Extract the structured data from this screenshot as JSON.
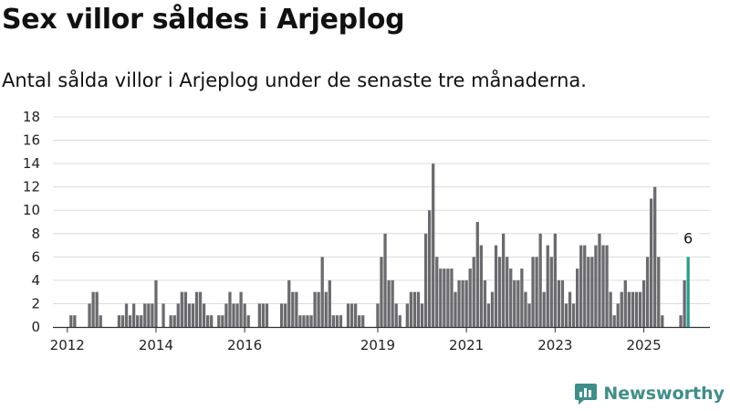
{
  "colors": {
    "bar": "#6b6b6f",
    "highlight": "#2a9d8f",
    "grid": "#dcdcdc",
    "brand": "#3e8e8a"
  },
  "logo": {
    "text": "Newsworthy",
    "icon": "newsworthy-chart-icon"
  },
  "chart_data": {
    "type": "bar",
    "title": "Sex villor såldes i Arjeplog",
    "subtitle": "Antal sålda villor i Arjeplog under de senaste tre månaderna.",
    "xlabel": "",
    "ylabel": "",
    "ylim": [
      0,
      18
    ],
    "yticks": [
      0,
      2,
      4,
      6,
      8,
      10,
      12,
      14,
      16,
      18
    ],
    "xticks": [
      {
        "label": "2012",
        "index": 2
      },
      {
        "label": "2014",
        "index": 26
      },
      {
        "label": "2016",
        "index": 50
      },
      {
        "label": "2019",
        "index": 86
      },
      {
        "label": "2021",
        "index": 110
      },
      {
        "label": "2023",
        "index": 134
      },
      {
        "label": "2025",
        "index": 158
      }
    ],
    "grid": true,
    "legend": "none",
    "period_start": "2011-11",
    "interval": "month",
    "values": [
      0,
      0,
      0,
      1,
      1,
      0,
      0,
      0,
      2,
      3,
      3,
      1,
      0,
      0,
      0,
      0,
      1,
      1,
      2,
      1,
      2,
      1,
      1,
      2,
      2,
      2,
      4,
      0,
      2,
      0,
      1,
      1,
      2,
      3,
      3,
      2,
      2,
      3,
      3,
      2,
      1,
      1,
      0,
      1,
      1,
      2,
      3,
      2,
      2,
      3,
      2,
      1,
      0,
      0,
      2,
      2,
      2,
      0,
      0,
      0,
      2,
      2,
      4,
      3,
      3,
      1,
      1,
      1,
      1,
      3,
      3,
      6,
      3,
      4,
      1,
      1,
      1,
      0,
      2,
      2,
      2,
      1,
      1,
      0,
      0,
      0,
      2,
      6,
      8,
      4,
      4,
      2,
      1,
      0,
      2,
      3,
      3,
      3,
      2,
      8,
      10,
      14,
      6,
      5,
      5,
      5,
      5,
      3,
      4,
      4,
      4,
      5,
      6,
      9,
      7,
      4,
      2,
      3,
      7,
      6,
      8,
      6,
      5,
      4,
      4,
      5,
      3,
      2,
      6,
      6,
      8,
      3,
      7,
      6,
      8,
      4,
      4,
      2,
      3,
      2,
      5,
      7,
      7,
      6,
      6,
      7,
      8,
      7,
      7,
      3,
      1,
      2,
      3,
      4,
      3,
      3,
      3,
      3,
      4,
      6,
      11,
      12,
      6,
      1,
      0,
      0,
      0,
      0,
      1,
      4,
      6
    ],
    "highlight_index": 170,
    "annotation": {
      "index": 170,
      "label": "6"
    }
  }
}
